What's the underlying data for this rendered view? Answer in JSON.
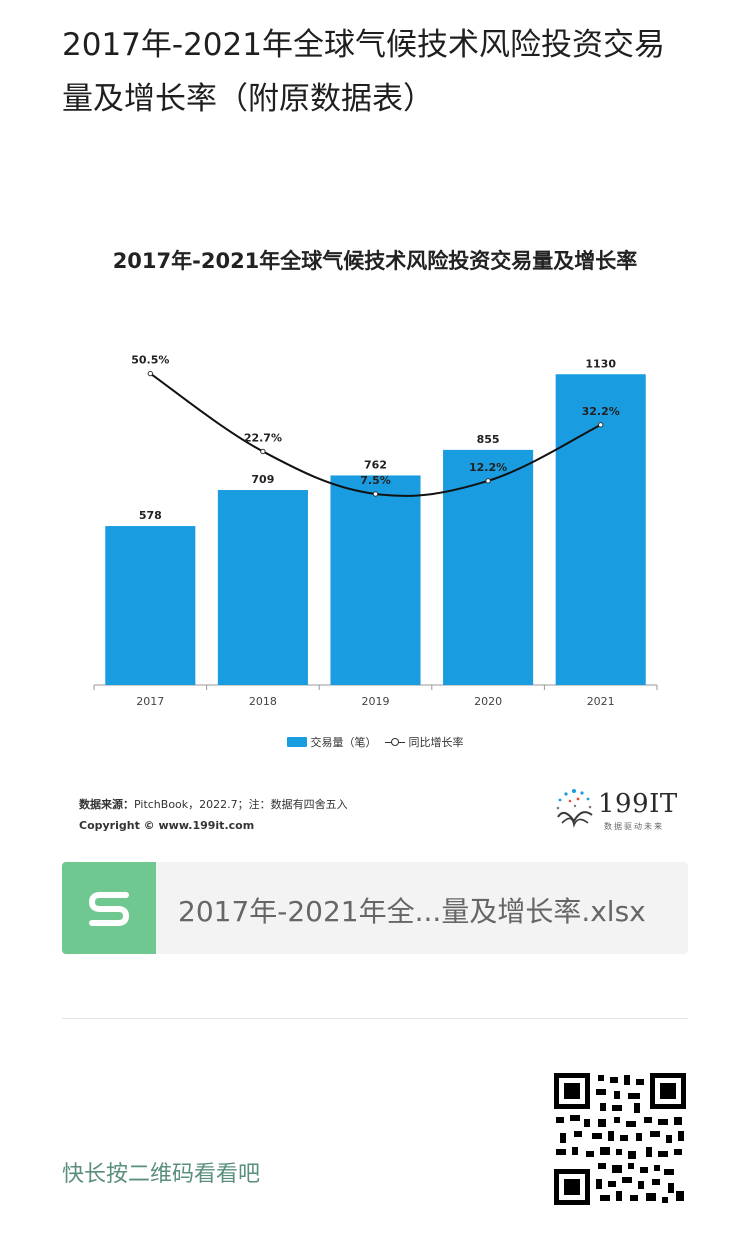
{
  "page": {
    "title": "2017年-2021年全球气候技术风险投资交易量及增长率（附原数据表）"
  },
  "chart_data": {
    "type": "bar",
    "title": "2017年-2021年全球气候技术风险投资交易量及增长率",
    "categories": [
      "2017",
      "2018",
      "2019",
      "2020",
      "2021"
    ],
    "series": [
      {
        "name": "交易量（笔）",
        "type": "bar",
        "values": [
          578,
          709,
          762,
          855,
          1130
        ],
        "labels": [
          "578",
          "709",
          "762",
          "855",
          "1130"
        ],
        "color": "#1a9de0"
      },
      {
        "name": "同比增长率",
        "type": "line",
        "values": [
          50.5,
          22.7,
          7.5,
          12.2,
          32.2
        ],
        "labels": [
          "50.5%",
          "22.7%",
          "7.5%",
          "12.2%",
          "32.2%"
        ],
        "color": "#111111"
      }
    ],
    "grid": false,
    "legend": "bottom-center"
  },
  "source": {
    "label": "数据来源：",
    "text": "PitchBook，2022.7；注：数据有四舍五入",
    "copyright": "Copyright ©  www.199it.com"
  },
  "logo": {
    "text": "199IT",
    "slogan": "数据驱动未来"
  },
  "attachment": {
    "icon": "spreadsheet-s-icon",
    "file_name": "2017年-2021年全...量及增长率.xlsx"
  },
  "footer": {
    "qr_hint": "快长按二维码看看吧",
    "qr_icon": "qr-code-icon"
  },
  "colors": {
    "bar": "#1a9de0",
    "line": "#111111",
    "file_icon": "#6ec88f",
    "hint": "#5a8f7b"
  }
}
